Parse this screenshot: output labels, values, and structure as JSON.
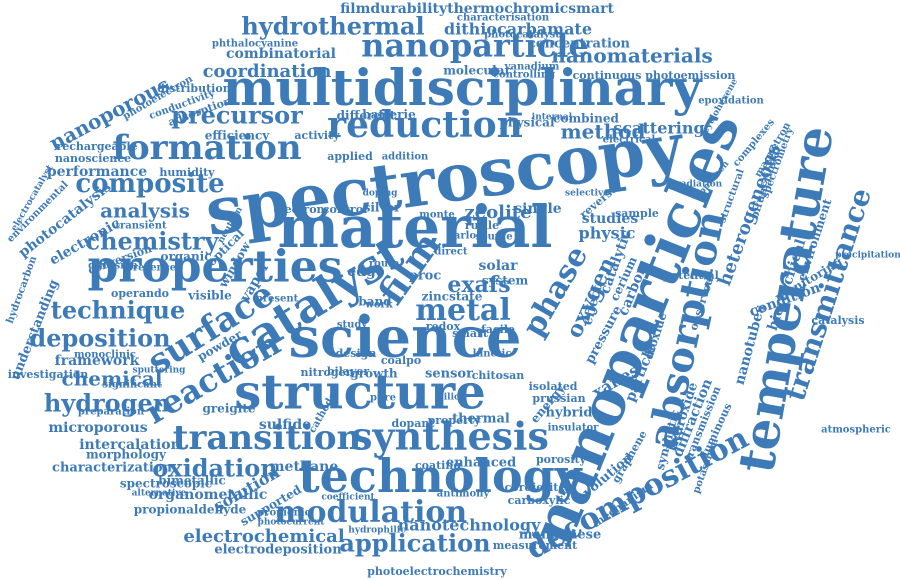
{
  "colors": {
    "text": "#3d7ab8",
    "background": "#ffffff"
  },
  "words": [
    {
      "id": "spectroscopy",
      "text": "spectroscopy"
    },
    {
      "id": "material",
      "text": "material"
    },
    {
      "id": "nanoparticles",
      "text": "nanoparticles"
    },
    {
      "id": "multidisciplinary",
      "text": "multidisciplinary"
    },
    {
      "id": "science",
      "text": "science"
    },
    {
      "id": "properties",
      "text": "properties"
    },
    {
      "id": "structure",
      "text": "structure"
    },
    {
      "id": "technology",
      "text": "technology"
    },
    {
      "id": "synthesis",
      "text": "synthesis"
    },
    {
      "id": "catalyst",
      "text": "catalyst"
    },
    {
      "id": "temperature",
      "text": "temperature"
    },
    {
      "id": "absorption",
      "text": "absorption"
    },
    {
      "id": "transmittance",
      "text": "transmittance"
    },
    {
      "id": "reduction",
      "text": "reduction"
    },
    {
      "id": "formation",
      "text": "formation"
    },
    {
      "id": "nanoparticle",
      "text": "nanoparticle"
    },
    {
      "id": "transition",
      "text": "transition"
    },
    {
      "id": "surface",
      "text": "surface"
    },
    {
      "id": "reaction",
      "text": "reaction"
    },
    {
      "id": "film",
      "text": "film"
    },
    {
      "id": "metal",
      "text": "metal"
    },
    {
      "id": "phase",
      "text": "phase"
    },
    {
      "id": "decomposition",
      "text": "decomposition"
    },
    {
      "id": "modulation",
      "text": "modulation"
    },
    {
      "id": "hydrothermal",
      "text": "hydrothermal"
    },
    {
      "id": "composite",
      "text": "composite"
    },
    {
      "id": "chemistry",
      "text": "chemistry"
    },
    {
      "id": "precursor",
      "text": "precursor"
    },
    {
      "id": "deposition",
      "text": "deposition"
    },
    {
      "id": "technique",
      "text": "technique"
    },
    {
      "id": "hydrogen",
      "text": "hydrogen"
    },
    {
      "id": "oxidation",
      "text": "oxidation"
    },
    {
      "id": "application",
      "text": "application"
    },
    {
      "id": "electrochemical",
      "text": "electrochemical"
    },
    {
      "id": "nanoporous",
      "text": "nanoporous"
    },
    {
      "id": "chemical",
      "text": "chemical"
    },
    {
      "id": "nanomaterials",
      "text": "nanomaterials"
    },
    {
      "id": "analysis",
      "text": "analysis"
    },
    {
      "id": "coordination",
      "text": "coordination"
    },
    {
      "id": "method",
      "text": "method"
    },
    {
      "id": "oxygen",
      "text": "oxygen"
    },
    {
      "id": "exafs",
      "text": "exafs"
    },
    {
      "id": "heterogeneous",
      "text": "heterogeneous"
    },
    {
      "id": "catalytic",
      "text": "catalytic"
    },
    {
      "id": "zeolite",
      "text": "zeolite"
    },
    {
      "id": "physic",
      "text": "physic"
    },
    {
      "id": "xanes",
      "text": "xanes"
    },
    {
      "id": "filmdurability",
      "text": "filmdurabilitythermochromicsmart"
    },
    {
      "id": "dithiocarbamate",
      "text": "dithiocarbamate"
    },
    {
      "id": "combinatorial",
      "text": "combinatorial"
    },
    {
      "id": "photoemission",
      "text": "continuous photoemission"
    },
    {
      "id": "concentration",
      "text": "concentration"
    },
    {
      "id": "rechargeable",
      "text": "rechargeable"
    },
    {
      "id": "nanoscience",
      "text": "nanoscience"
    },
    {
      "id": "performance",
      "text": "performance"
    },
    {
      "id": "photocatalysis",
      "text": "photocatalysis"
    },
    {
      "id": "electronic",
      "text": "electronic"
    },
    {
      "id": "microporous",
      "text": "microporous"
    },
    {
      "id": "intercalation",
      "text": "intercalation"
    },
    {
      "id": "morphology",
      "text": "morphology"
    },
    {
      "id": "characterization",
      "text": "characterization"
    },
    {
      "id": "organometallic",
      "text": "organometallic"
    },
    {
      "id": "propionaldehyde",
      "text": "propionaldehyde"
    },
    {
      "id": "electrodeposition",
      "text": "electrodeposition"
    },
    {
      "id": "nanotechnology",
      "text": "nanotechnology"
    },
    {
      "id": "photoelectrochemistry",
      "text": "photoelectrochemistry"
    },
    {
      "id": "manganese",
      "text": "manganese"
    },
    {
      "id": "scattering",
      "text": "scattering"
    },
    {
      "id": "diffraction",
      "text": "diffraction"
    },
    {
      "id": "hydroxide",
      "text": "hydroxide"
    },
    {
      "id": "particle",
      "text": "particle"
    },
    {
      "id": "evolution",
      "text": "evolution"
    },
    {
      "id": "hierarchical",
      "text": "hierarchical"
    },
    {
      "id": "nanotubes",
      "text": "nanotubes"
    },
    {
      "id": "condition",
      "text": "condition"
    },
    {
      "id": "environment",
      "text": "environment"
    },
    {
      "id": "solution",
      "text": "solution"
    },
    {
      "id": "sulfide",
      "text": "sulfide"
    },
    {
      "id": "methane",
      "text": "methane"
    },
    {
      "id": "enhanced",
      "text": "enhanced"
    },
    {
      "id": "thermal",
      "text": "thermal"
    },
    {
      "id": "hybrid",
      "text": "hybrid"
    },
    {
      "id": "sensor",
      "text": "sensor"
    },
    {
      "id": "growth",
      "text": "growth"
    },
    {
      "id": "dioxide",
      "text": "dioxide"
    },
    {
      "id": "pressure",
      "text": "pressure"
    },
    {
      "id": "effect",
      "text": "effect"
    },
    {
      "id": "solar",
      "text": "solar"
    },
    {
      "id": "system",
      "text": "system"
    },
    {
      "id": "single",
      "text": "single"
    },
    {
      "id": "studies",
      "text": "studies"
    },
    {
      "id": "edge",
      "text": "edge"
    },
    {
      "id": "proc",
      "text": "proc"
    },
    {
      "id": "vapor",
      "text": "vapor"
    },
    {
      "id": "window",
      "text": "window"
    },
    {
      "id": "visible",
      "text": "visible"
    },
    {
      "id": "organic",
      "text": "organic"
    },
    {
      "id": "optical",
      "text": "optical"
    },
    {
      "id": "humidity",
      "text": "humidity"
    },
    {
      "id": "efficiency",
      "text": "efficiency"
    },
    {
      "id": "activity",
      "text": "activity"
    },
    {
      "id": "adsorption",
      "text": "adsorption"
    },
    {
      "id": "distribution",
      "text": "distribution"
    },
    {
      "id": "conductivity",
      "text": "conductivity"
    },
    {
      "id": "photoelectron",
      "text": "photoelectron"
    },
    {
      "id": "molecular",
      "text": "molecular"
    },
    {
      "id": "different",
      "text": "different"
    },
    {
      "id": "batterie",
      "text": "batterie"
    },
    {
      "id": "physical",
      "text": "physical"
    },
    {
      "id": "combined",
      "text": "combined"
    },
    {
      "id": "applied",
      "text": "applied"
    },
    {
      "id": "addition",
      "text": "addition"
    },
    {
      "id": "electron",
      "text": "electron"
    },
    {
      "id": "control",
      "text": "control"
    },
    {
      "id": "silver",
      "text": "silver"
    },
    {
      "id": "photocatalyst",
      "text": "photocatalyst"
    },
    {
      "id": "phthalocyanine",
      "text": "phthalocyanine"
    },
    {
      "id": "characterisation",
      "text": "characterisation"
    },
    {
      "id": "vanadium",
      "text": "vanadium"
    },
    {
      "id": "controlling",
      "text": "controlling"
    },
    {
      "id": "epoxidation",
      "text": "epoxidation"
    },
    {
      "id": "cyclohexene",
      "text": "cyclohexene"
    },
    {
      "id": "spectrometry",
      "text": "spectrometry"
    },
    {
      "id": "bifunctional",
      "text": "bifunctional"
    },
    {
      "id": "complexes",
      "text": "complexes"
    },
    {
      "id": "magnetron",
      "text": "magnetron"
    },
    {
      "id": "precipitation",
      "text": "precipitation"
    },
    {
      "id": "monitoring",
      "text": "monitoring"
    },
    {
      "id": "catalysis",
      "text": "catalysis"
    },
    {
      "id": "atmospheric",
      "text": "atmospheric"
    },
    {
      "id": "potential",
      "text": "potential"
    },
    {
      "id": "observed",
      "text": "observed"
    },
    {
      "id": "radiation",
      "text": "radiation"
    },
    {
      "id": "structural",
      "text": "structural"
    },
    {
      "id": "approach",
      "text": "approach"
    },
    {
      "id": "sample",
      "text": "sample"
    },
    {
      "id": "reverse",
      "text": "reverse"
    },
    {
      "id": "carbon",
      "text": "carbon"
    },
    {
      "id": "cerium",
      "text": "cerium"
    },
    {
      "id": "synthetic",
      "text": "synthetic"
    },
    {
      "id": "mechanism",
      "text": "mechanism"
    },
    {
      "id": "graphene",
      "text": "graphene"
    },
    {
      "id": "transmission",
      "text": "transmission"
    },
    {
      "id": "luminous",
      "text": "luminous"
    },
    {
      "id": "potassium",
      "text": "potassium"
    },
    {
      "id": "porosity",
      "text": "porosity"
    },
    {
      "id": "cordierite",
      "text": "cordierite"
    },
    {
      "id": "carboxylic",
      "text": "carboxylic"
    },
    {
      "id": "measurement",
      "text": "measurement"
    },
    {
      "id": "antimony",
      "text": "antimony"
    },
    {
      "id": "coating",
      "text": "coating"
    },
    {
      "id": "prussian",
      "text": "prussian"
    },
    {
      "id": "insulator",
      "text": "insulator"
    },
    {
      "id": "isolated",
      "text": "isolated"
    },
    {
      "id": "chitosan",
      "text": "chitosan"
    },
    {
      "id": "dopant",
      "text": "dopant"
    },
    {
      "id": "property",
      "text": "property"
    },
    {
      "id": "bilayer",
      "text": "bilayer"
    },
    {
      "id": "nitrogen",
      "text": "nitrogen"
    },
    {
      "id": "design",
      "text": "design"
    },
    {
      "id": "coalpo",
      "text": "coalpo"
    },
    {
      "id": "redox",
      "text": "redox"
    },
    {
      "id": "smart",
      "text": "smart"
    },
    {
      "id": "facile",
      "text": "facile"
    },
    {
      "id": "kinetic",
      "text": "kinetic"
    },
    {
      "id": "band",
      "text": "band"
    },
    {
      "id": "zincstate",
      "text": "zincstate"
    },
    {
      "id": "rutile",
      "text": "rutile"
    },
    {
      "id": "carlo",
      "text": "carlo"
    },
    {
      "id": "monte",
      "text": "monte"
    },
    {
      "id": "source",
      "text": "source"
    },
    {
      "id": "direct",
      "text": "direct"
    },
    {
      "id": "route",
      "text": "route"
    },
    {
      "id": "present",
      "text": "present"
    },
    {
      "id": "powder",
      "text": "powder"
    },
    {
      "id": "framework",
      "text": "framework"
    },
    {
      "id": "investigation",
      "text": "investigation"
    },
    {
      "id": "significant",
      "text": "significant"
    },
    {
      "id": "greigite",
      "text": "greigite"
    },
    {
      "id": "bimetallic",
      "text": "bimetallic"
    },
    {
      "id": "spectroscopic",
      "text": "spectroscopic"
    },
    {
      "id": "supported",
      "text": "supported"
    },
    {
      "id": "propionic",
      "text": "propionic"
    },
    {
      "id": "coefficient",
      "text": "coefficient"
    },
    {
      "id": "photocurrent",
      "text": "photocurrent"
    },
    {
      "id": "hydrophilic",
      "text": "hydrophilic"
    },
    {
      "id": "alternative",
      "text": "alternative"
    },
    {
      "id": "cathode",
      "text": "cathode"
    },
    {
      "id": "preparation",
      "text": "preparation"
    },
    {
      "id": "monoclinic",
      "text": "monoclinic"
    },
    {
      "id": "operando",
      "text": "operando"
    },
    {
      "id": "understanding",
      "text": "understanding"
    },
    {
      "id": "hydrocarbon",
      "text": "hydrocarbon"
    },
    {
      "id": "conversion",
      "text": "conversion"
    },
    {
      "id": "diffusion",
      "text": "diffusion"
    },
    {
      "id": "presence",
      "text": "presence"
    },
    {
      "id": "transient",
      "text": "transient"
    },
    {
      "id": "neutron",
      "text": "neutron"
    },
    {
      "id": "environmental",
      "text": "environmental"
    },
    {
      "id": "electrocatalyst",
      "text": "electrocatalyst"
    },
    {
      "id": "sputtering",
      "text": "sputtering"
    },
    {
      "id": "electrical",
      "text": "electrical"
    },
    {
      "id": "internal",
      "text": "internal"
    },
    {
      "id": "selective",
      "text": "selective"
    },
    {
      "id": "work",
      "text": "work"
    },
    {
      "id": "study",
      "text": "study"
    },
    {
      "id": "pure",
      "text": "pure"
    },
    {
      "id": "silica",
      "text": "silica"
    },
    {
      "id": "doping",
      "text": "doping"
    },
    {
      "id": "energy",
      "text": "energy"
    }
  ]
}
